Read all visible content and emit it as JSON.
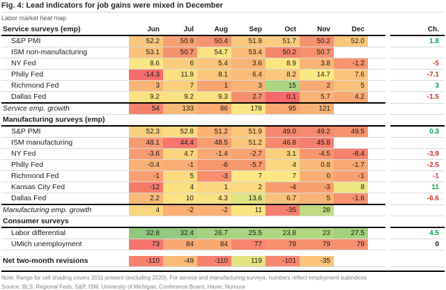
{
  "chart_data": {
    "type": "heatmap",
    "title": "Fig. 4: Lead indicators for job gains were mixed in December",
    "subtitle": "Labor market heat map",
    "first_header": "Service surveys (emp)",
    "columns": [
      "Jun",
      "Jul",
      "Aug",
      "Sep",
      "Oct",
      "Nov",
      "Dec"
    ],
    "change_header": "Ch.",
    "ch_colors": {
      "green": "#00A44E",
      "red": "#CE342C",
      "black": "#1a1a1a"
    },
    "rows": [
      {
        "kind": "data",
        "label": "S&P PMI",
        "values": [
          "52.2",
          "50.9",
          "50.4",
          "51.9",
          "51.7",
          "50.2",
          "52.0"
        ],
        "colors": [
          "#FAC77C",
          "#F6A173",
          "#F49471",
          "#FAC87C",
          "#FACB7D",
          "#F59270",
          "#FAC87C"
        ],
        "ch": "1.8",
        "ch_color": "green"
      },
      {
        "kind": "data",
        "label": "ISM non-manufacturing",
        "values": [
          "53.1",
          "50.7",
          "54.7",
          "53.4",
          "50.2",
          "50.7",
          null
        ],
        "colors": [
          "#F9C17A",
          "#F5926F",
          "#FBE383",
          "#F9BC79",
          "#F5856D",
          "#F5916F",
          null
        ],
        "ch": null
      },
      {
        "kind": "data",
        "label": "NY Fed",
        "values": [
          "8.6",
          "6",
          "5.4",
          "3.6",
          "8.9",
          "3.8",
          "-1.2"
        ],
        "colors": [
          "#FCE583",
          "#FACC7D",
          "#F9C47B",
          "#F8B476",
          "#FCE583",
          "#F8B577",
          "#F5946F"
        ],
        "ch": "-5",
        "ch_color": "red"
      },
      {
        "kind": "data",
        "label": "Philly Fed",
        "values": [
          "-14.3",
          "11.9",
          "8.1",
          "6.4",
          "8.2",
          "14.7",
          "7.6"
        ],
        "colors": [
          "#F76B6A",
          "#FBDF81",
          "#FAC87C",
          "#F9BC79",
          "#FAC87C",
          "#FCE883",
          "#FAC37A"
        ],
        "ch": "-7.1",
        "ch_color": "red"
      },
      {
        "kind": "data",
        "label": "Richmond Fed",
        "values": [
          "3",
          "7",
          "1",
          "3",
          "15",
          "2",
          "5"
        ],
        "colors": [
          "#F8B376",
          "#FACF7D",
          "#F7A372",
          "#F8B376",
          "#ABD580",
          "#F7AB74",
          "#F9C17A"
        ],
        "ch": "3",
        "ch_color": "green"
      },
      {
        "kind": "data",
        "label": "Dallas Fed",
        "values": [
          "9.2",
          "9.2",
          "9.3",
          "2.7",
          "0.1",
          "5.7",
          "4.2"
        ],
        "colors": [
          "#FBE181",
          "#FBE181",
          "#FBE181",
          "#F5916F",
          "#F8696B",
          "#F8B476",
          "#F7A873"
        ],
        "ch": "-1.5",
        "ch_color": "red",
        "sep": true
      },
      {
        "kind": "growth",
        "label": "Service emp. growth",
        "values": [
          "54",
          "133",
          "86",
          "178",
          "95",
          "121",
          null
        ],
        "colors": [
          "#F5816D",
          "#F9B977",
          "#F8AB74",
          "#FCE683",
          "#F8A872",
          "#F8B275",
          null
        ],
        "ch": null
      },
      {
        "kind": "section",
        "label": "Manufacturing surveys (emp)"
      },
      {
        "kind": "data",
        "label": "S&P PMI",
        "values": [
          "52.3",
          "52.8",
          "51.2",
          "51.9",
          "49.0",
          "49.2",
          "49.5"
        ],
        "colors": [
          "#FAD07E",
          "#FBDC80",
          "#F9B175",
          "#FAC77C",
          "#F58870",
          "#F58B6F",
          "#F6926F"
        ],
        "ch": "0.3",
        "ch_color": "green"
      },
      {
        "kind": "data",
        "label": "ISM manufacturing",
        "values": [
          "48.1",
          "44.4",
          "48.5",
          "51.2",
          "46.8",
          "45.8",
          null
        ],
        "colors": [
          "#F69A71",
          "#F7756C",
          "#F69D72",
          "#FAC87C",
          "#F6886E",
          "#F67E6D",
          null
        ],
        "ch": null
      },
      {
        "kind": "data",
        "label": "NY Fed",
        "values": [
          "-3.6",
          "4.7",
          "-1.4",
          "-2.7",
          "3.1",
          "-4.5",
          "-8.4"
        ],
        "colors": [
          "#F79C71",
          "#FBD47E",
          "#F8A974",
          "#F8A172",
          "#FBCF7D",
          "#F79770",
          "#F6826D"
        ],
        "ch": "-3.9",
        "ch_color": "red"
      },
      {
        "kind": "data",
        "label": "Philly Fed",
        "values": [
          "-0.4",
          "-1",
          "-6",
          "-5.7",
          "4",
          "0.8",
          "-1.7"
        ],
        "colors": [
          "#F9B176",
          "#F9AD74",
          "#F79770",
          "#F79970",
          "#FBD67F",
          "#FAB978",
          "#F8A873"
        ],
        "ch": "-2.5",
        "ch_color": "red"
      },
      {
        "kind": "data",
        "label": "Richmond Fed",
        "values": [
          "-1",
          "5",
          "-3",
          "7",
          "7",
          "0",
          "-1"
        ],
        "colors": [
          "#F89F71",
          "#FCDA80",
          "#F78E6F",
          "#FDE683",
          "#FDE683",
          "#F9AC74",
          "#F89F71"
        ],
        "ch": "-1",
        "ch_color": "red"
      },
      {
        "kind": "data",
        "label": "Kansas City Fed",
        "values": [
          "-12",
          "4",
          "1",
          "2",
          "-4",
          "-3",
          "8"
        ],
        "colors": [
          "#F57A6C",
          "#FCDF81",
          "#FCD57F",
          "#FCD980",
          "#F89C71",
          "#F8A071",
          "#EDE682"
        ],
        "ch": "11",
        "ch_color": "green"
      },
      {
        "kind": "data",
        "label": "Dallas Fed",
        "values": [
          "2.2",
          "10",
          "4.3",
          "13.6",
          "6.7",
          "5",
          "-1.6"
        ],
        "colors": [
          "#F9B977",
          "#FCE282",
          "#FBE081",
          "#DFE481",
          "#FAC27A",
          "#F8B275",
          "#F6916F"
        ],
        "ch": "-6.6",
        "ch_color": "red",
        "sep": true
      },
      {
        "kind": "growth",
        "label": "Manufacturing emp. growth",
        "values": [
          "4",
          "-2",
          "-2",
          "11",
          "-35",
          "28",
          null
        ],
        "colors": [
          "#FBD67F",
          "#F9AF75",
          "#F9AF75",
          "#FCE482",
          "#F57F6D",
          "#BFDA82",
          null
        ],
        "ch": null
      },
      {
        "kind": "section",
        "label": "Consumer surveys"
      },
      {
        "kind": "data",
        "label": "Labor differential",
        "values": [
          "32.8",
          "32.4",
          "26.7",
          "25.5",
          "23.8",
          "23",
          "27.5"
        ],
        "colors": [
          "#90C97D",
          "#93CB7E",
          "#A5D380",
          "#A9D480",
          "#AFD680",
          "#B1D781",
          "#A3D27F"
        ],
        "ch": "4.5",
        "ch_color": "green"
      },
      {
        "kind": "data",
        "label": "UMich unemployment",
        "values": [
          "73",
          "84",
          "84",
          "77",
          "79",
          "79",
          "79"
        ],
        "colors": [
          "#F8756C",
          "#F9A873",
          "#F9A873",
          "#F8856E",
          "#F88F70",
          "#F88F70",
          "#F88F70"
        ],
        "ch": "0",
        "ch_color": "black"
      },
      {
        "kind": "gap"
      },
      {
        "kind": "netrev",
        "label": "Net two-month revisions",
        "values": [
          "-110",
          "-49",
          "-110",
          "119",
          "-101",
          "-35",
          null
        ],
        "colors": [
          "#F7816E",
          "#FABB78",
          "#F7816E",
          "#E3E382",
          "#F8876F",
          "#FAC57B",
          null
        ],
        "ch": null
      }
    ],
    "note": "Note: Range for cell shading covers 2011-present (excluding 2020). For service and manufacturing surveys, numbers reflect employment subindices",
    "source": "Source: BLS, Regional Feds, S&P, ISM, University of Michigan, Conference Board, Haver, Nomura"
  }
}
